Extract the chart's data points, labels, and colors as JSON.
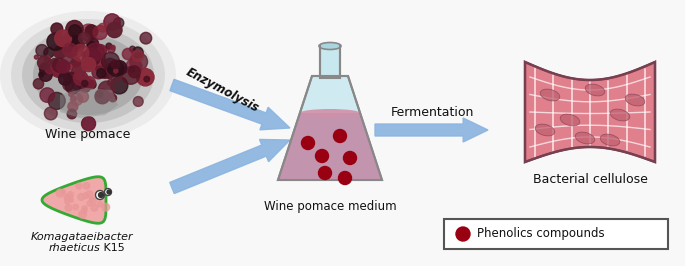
{
  "bg_color": "#f8f8f8",
  "border_color": "#444444",
  "arrow_color": "#8ab4e0",
  "labels": {
    "wine_pomace": "Wine pomace",
    "bacteria_line1": "Komagataeibacter",
    "bacteria_line2": "rhaeticus",
    "bacteria_k15": " K15",
    "flask": "Wine pomace medium",
    "fermentation": "Fermentation",
    "bacterial_cellulose": "Bacterial cellulose",
    "enzymolysis": "Enzymolysis",
    "phenolics": "Phenolics compounds"
  },
  "flask_glass": "#c8e8f0",
  "flask_glass_edge": "#888888",
  "flask_liquid": "#c07898",
  "flask_liquid_top": "#d090a8",
  "flask_dot_color": "#990011",
  "bacteria_body": "#f0a8a8",
  "bacteria_border": "#33aa33",
  "cellulose_main": "#e0808c",
  "cellulose_dark": "#c06070",
  "cellulose_light": "#f0b0bc",
  "legend_border": "#555555",
  "text_color": "#111111"
}
